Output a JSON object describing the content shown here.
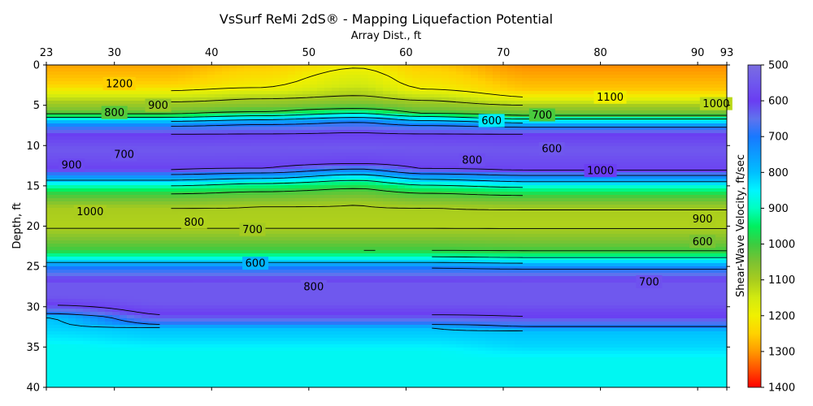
{
  "chart_data": {
    "type": "heatmap",
    "title": "VsSurf ReMi 2dS® - Mapping Liquefaction Potential",
    "xlabel": "Array Dist., ft",
    "ylabel": "Depth, ft",
    "colorbar_label": "Shear-Wave Velocity, ft/sec",
    "x_axis_position": "top",
    "xlim": [
      23,
      93
    ],
    "ylim": [
      0,
      40
    ],
    "y_inverted": true,
    "x_ticks": [
      23,
      30,
      40,
      50,
      60,
      70,
      80,
      90,
      93
    ],
    "y_ticks": [
      0,
      5,
      10,
      15,
      20,
      25,
      30,
      35,
      40
    ],
    "colorbar_range": [
      500,
      1400
    ],
    "colorbar_inverted": true,
    "colorbar_ticks": [
      500,
      600,
      700,
      800,
      900,
      1000,
      1100,
      1200,
      1300,
      1400
    ],
    "colormap": [
      {
        "v": 500,
        "color": "#7b6ee0"
      },
      {
        "v": 550,
        "color": "#6f58ee"
      },
      {
        "v": 600,
        "color": "#6a3df2"
      },
      {
        "v": 650,
        "color": "#5f73ee"
      },
      {
        "v": 700,
        "color": "#1878ff"
      },
      {
        "v": 800,
        "color": "#00bfff"
      },
      {
        "v": 850,
        "color": "#00f5ff"
      },
      {
        "v": 900,
        "color": "#00ffc0"
      },
      {
        "v": 950,
        "color": "#00f060"
      },
      {
        "v": 1000,
        "color": "#3ccc40"
      },
      {
        "v": 1050,
        "color": "#7cc232"
      },
      {
        "v": 1100,
        "color": "#a8cc1e"
      },
      {
        "v": 1150,
        "color": "#d2ea10"
      },
      {
        "v": 1200,
        "color": "#f0f000"
      },
      {
        "v": 1250,
        "color": "#ffd200"
      },
      {
        "v": 1300,
        "color": "#ff9900"
      },
      {
        "v": 1350,
        "color": "#ff5000"
      },
      {
        "v": 1400,
        "color": "#ff0000"
      }
    ],
    "profile_knots_x": [
      23,
      35,
      45,
      55,
      62,
      73,
      93
    ],
    "profiles": [
      [
        [
          0,
          1290
        ],
        [
          2.4,
          1250
        ],
        [
          3.2,
          1200
        ],
        [
          3.9,
          1150
        ],
        [
          4.6,
          1100
        ],
        [
          5.6,
          1050
        ],
        [
          6.1,
          1000
        ],
        [
          6.5,
          900
        ],
        [
          7.0,
          800
        ],
        [
          7.6,
          700
        ],
        [
          8.6,
          600
        ],
        [
          10.5,
          550
        ],
        [
          12.5,
          580
        ],
        [
          13.0,
          600
        ],
        [
          13.6,
          700
        ],
        [
          14.3,
          800
        ],
        [
          15.0,
          900
        ],
        [
          16.0,
          1000
        ],
        [
          17.8,
          1100
        ],
        [
          20,
          1110
        ],
        [
          22.2,
          1030
        ],
        [
          23.0,
          1000
        ],
        [
          23.8,
          900
        ],
        [
          24.5,
          800
        ],
        [
          25.2,
          700
        ],
        [
          26.0,
          650
        ],
        [
          26.6,
          600
        ],
        [
          27.2,
          550
        ],
        [
          28.7,
          550
        ],
        [
          29.8,
          600
        ],
        [
          30.9,
          700
        ],
        [
          31.3,
          800
        ],
        [
          32.8,
          820
        ],
        [
          34.8,
          860
        ],
        [
          37,
          860
        ],
        [
          40,
          860
        ]
      ],
      [
        [
          0,
          1290
        ],
        [
          2.4,
          1250
        ],
        [
          3.2,
          1200
        ],
        [
          3.9,
          1150
        ],
        [
          4.6,
          1100
        ],
        [
          5.6,
          1050
        ],
        [
          6.1,
          1000
        ],
        [
          6.5,
          900
        ],
        [
          7.0,
          800
        ],
        [
          7.6,
          700
        ],
        [
          8.6,
          600
        ],
        [
          10.5,
          550
        ],
        [
          12.5,
          580
        ],
        [
          13.0,
          600
        ],
        [
          13.6,
          700
        ],
        [
          14.3,
          800
        ],
        [
          15.0,
          900
        ],
        [
          16.0,
          1000
        ],
        [
          17.8,
          1100
        ],
        [
          20,
          1110
        ],
        [
          22.2,
          1030
        ],
        [
          23.0,
          1000
        ],
        [
          23.8,
          900
        ],
        [
          24.5,
          800
        ],
        [
          25.2,
          700
        ],
        [
          26.0,
          650
        ],
        [
          26.6,
          600
        ],
        [
          27.2,
          550
        ],
        [
          29.5,
          550
        ],
        [
          31.0,
          600
        ],
        [
          32.2,
          700
        ],
        [
          32.6,
          800
        ],
        [
          33.8,
          820
        ],
        [
          35.5,
          860
        ],
        [
          37,
          860
        ],
        [
          40,
          860
        ]
      ],
      [
        [
          0,
          1260
        ],
        [
          2.0,
          1220
        ],
        [
          2.8,
          1200
        ],
        [
          3.5,
          1150
        ],
        [
          4.2,
          1100
        ],
        [
          5.2,
          1050
        ],
        [
          5.8,
          1000
        ],
        [
          6.3,
          900
        ],
        [
          6.8,
          800
        ],
        [
          7.4,
          700
        ],
        [
          8.5,
          600
        ],
        [
          10.4,
          550
        ],
        [
          12.2,
          580
        ],
        [
          12.8,
          600
        ],
        [
          13.4,
          700
        ],
        [
          14.1,
          800
        ],
        [
          14.7,
          900
        ],
        [
          15.7,
          1000
        ],
        [
          17.6,
          1100
        ],
        [
          20,
          1110
        ],
        [
          22.2,
          1030
        ],
        [
          23.0,
          1000
        ],
        [
          23.8,
          900
        ],
        [
          24.5,
          800
        ],
        [
          25.2,
          700
        ],
        [
          26.0,
          650
        ],
        [
          26.6,
          600
        ],
        [
          27.1,
          550
        ],
        [
          29.5,
          550
        ],
        [
          31.0,
          600
        ],
        [
          32.2,
          700
        ],
        [
          32.6,
          800
        ],
        [
          33.8,
          820
        ],
        [
          35.5,
          860
        ],
        [
          37,
          860
        ],
        [
          40,
          860
        ]
      ],
      [
        [
          0,
          1210
        ],
        [
          1.5,
          1170
        ],
        [
          2.5,
          1150
        ],
        [
          3.2,
          1120
        ],
        [
          3.8,
          1100
        ],
        [
          4.8,
          1050
        ],
        [
          5.4,
          1000
        ],
        [
          6.0,
          900
        ],
        [
          6.5,
          800
        ],
        [
          7.1,
          700
        ],
        [
          8.4,
          600
        ],
        [
          10.3,
          550
        ],
        [
          11.7,
          580
        ],
        [
          12.3,
          600
        ],
        [
          12.9,
          700
        ],
        [
          13.6,
          800
        ],
        [
          14.3,
          900
        ],
        [
          15.3,
          1000
        ],
        [
          17.4,
          1100
        ],
        [
          20,
          1110
        ],
        [
          22.2,
          1030
        ],
        [
          23.0,
          1000
        ],
        [
          23.8,
          900
        ],
        [
          24.5,
          800
        ],
        [
          25.2,
          700
        ],
        [
          26.0,
          650
        ],
        [
          26.6,
          600
        ],
        [
          27.1,
          550
        ],
        [
          29.5,
          550
        ],
        [
          31.0,
          600
        ],
        [
          32.2,
          700
        ],
        [
          32.6,
          800
        ],
        [
          33.8,
          820
        ],
        [
          35.5,
          860
        ],
        [
          37,
          860
        ],
        [
          40,
          860
        ]
      ],
      [
        [
          0,
          1260
        ],
        [
          2.2,
          1220
        ],
        [
          3.0,
          1200
        ],
        [
          3.7,
          1150
        ],
        [
          4.4,
          1100
        ],
        [
          5.4,
          1050
        ],
        [
          6.0,
          1000
        ],
        [
          6.4,
          900
        ],
        [
          6.9,
          800
        ],
        [
          7.5,
          700
        ],
        [
          8.5,
          600
        ],
        [
          10.4,
          550
        ],
        [
          12.3,
          580
        ],
        [
          12.9,
          600
        ],
        [
          13.5,
          700
        ],
        [
          14.2,
          800
        ],
        [
          14.9,
          900
        ],
        [
          15.9,
          1000
        ],
        [
          17.7,
          1100
        ],
        [
          20,
          1110
        ],
        [
          22.2,
          1030
        ],
        [
          23.0,
          1000
        ],
        [
          23.8,
          900
        ],
        [
          24.5,
          800
        ],
        [
          25.2,
          700
        ],
        [
          26.0,
          650
        ],
        [
          26.6,
          600
        ],
        [
          27.1,
          550
        ],
        [
          29.5,
          550
        ],
        [
          31.0,
          600
        ],
        [
          32.2,
          700
        ],
        [
          32.6,
          800
        ],
        [
          33.8,
          820
        ],
        [
          35.5,
          860
        ],
        [
          37,
          860
        ],
        [
          40,
          860
        ]
      ],
      [
        [
          0,
          1310
        ],
        [
          3.0,
          1260
        ],
        [
          4.0,
          1200
        ],
        [
          4.5,
          1150
        ],
        [
          5.0,
          1100
        ],
        [
          5.8,
          1050
        ],
        [
          6.3,
          1000
        ],
        [
          6.7,
          900
        ],
        [
          7.2,
          800
        ],
        [
          7.7,
          700
        ],
        [
          8.6,
          600
        ],
        [
          10.5,
          550
        ],
        [
          12.6,
          580
        ],
        [
          13.1,
          600
        ],
        [
          13.7,
          700
        ],
        [
          14.5,
          800
        ],
        [
          15.2,
          900
        ],
        [
          16.2,
          1000
        ],
        [
          17.9,
          1100
        ],
        [
          20,
          1110
        ],
        [
          22.4,
          1030
        ],
        [
          23.1,
          1000
        ],
        [
          23.9,
          900
        ],
        [
          24.6,
          800
        ],
        [
          25.3,
          700
        ],
        [
          26.0,
          650
        ],
        [
          26.6,
          600
        ],
        [
          27.0,
          550
        ],
        [
          29.5,
          550
        ],
        [
          31.2,
          600
        ],
        [
          32.5,
          700
        ],
        [
          33.0,
          800
        ],
        [
          34.8,
          820
        ],
        [
          36.5,
          860
        ],
        [
          38,
          860
        ],
        [
          40,
          860
        ]
      ],
      [
        [
          0,
          1310
        ],
        [
          3.0,
          1260
        ],
        [
          4.0,
          1200
        ],
        [
          4.5,
          1150
        ],
        [
          5.0,
          1100
        ],
        [
          5.8,
          1050
        ],
        [
          6.3,
          1000
        ],
        [
          6.7,
          900
        ],
        [
          7.2,
          800
        ],
        [
          7.7,
          700
        ],
        [
          8.6,
          600
        ],
        [
          10.5,
          550
        ],
        [
          12.6,
          580
        ],
        [
          13.1,
          600
        ],
        [
          13.7,
          700
        ],
        [
          14.5,
          800
        ],
        [
          15.2,
          900
        ],
        [
          16.2,
          1000
        ],
        [
          17.9,
          1100
        ],
        [
          20,
          1110
        ],
        [
          22.4,
          1030
        ],
        [
          23.1,
          1000
        ],
        [
          23.9,
          900
        ],
        [
          24.6,
          800
        ],
        [
          25.3,
          700
        ],
        [
          26.0,
          650
        ],
        [
          26.6,
          600
        ],
        [
          27.0,
          550
        ],
        [
          29.5,
          550
        ],
        [
          31.2,
          600
        ],
        [
          32.5,
          700
        ],
        [
          33.0,
          800
        ],
        [
          34.8,
          820
        ],
        [
          36.5,
          860
        ],
        [
          38,
          860
        ],
        [
          40,
          860
        ]
      ]
    ],
    "contour_levels": [
      600,
      700,
      800,
      900,
      1000,
      1100,
      1200
    ],
    "contour_labels": [
      {
        "text": "1200",
        "x": 30.5,
        "y": 2.3
      },
      {
        "text": "1100",
        "x": 81.0,
        "y": 4.0
      },
      {
        "text": "1000",
        "x": 91.9,
        "y": 4.8
      },
      {
        "text": "900",
        "x": 34.5,
        "y": 5.0
      },
      {
        "text": "800",
        "x": 30.0,
        "y": 5.9
      },
      {
        "text": "700",
        "x": 74.0,
        "y": 6.2
      },
      {
        "text": "600",
        "x": 68.8,
        "y": 6.9
      },
      {
        "text": "600",
        "x": 75.0,
        "y": 10.4
      },
      {
        "text": "700",
        "x": 31.0,
        "y": 11.1
      },
      {
        "text": "800",
        "x": 66.8,
        "y": 11.8
      },
      {
        "text": "900",
        "x": 25.6,
        "y": 12.4
      },
      {
        "text": "1000",
        "x": 80.0,
        "y": 13.1
      },
      {
        "text": "1000",
        "x": 27.5,
        "y": 18.2
      },
      {
        "text": "900",
        "x": 90.5,
        "y": 19.1
      },
      {
        "text": "800",
        "x": 38.2,
        "y": 19.5
      },
      {
        "text": "700",
        "x": 44.2,
        "y": 20.4
      },
      {
        "text": "600",
        "x": 90.5,
        "y": 21.9
      },
      {
        "text": "600",
        "x": 44.5,
        "y": 24.6
      },
      {
        "text": "700",
        "x": 85.0,
        "y": 26.9
      },
      {
        "text": "800",
        "x": 50.5,
        "y": 27.5
      }
    ]
  }
}
